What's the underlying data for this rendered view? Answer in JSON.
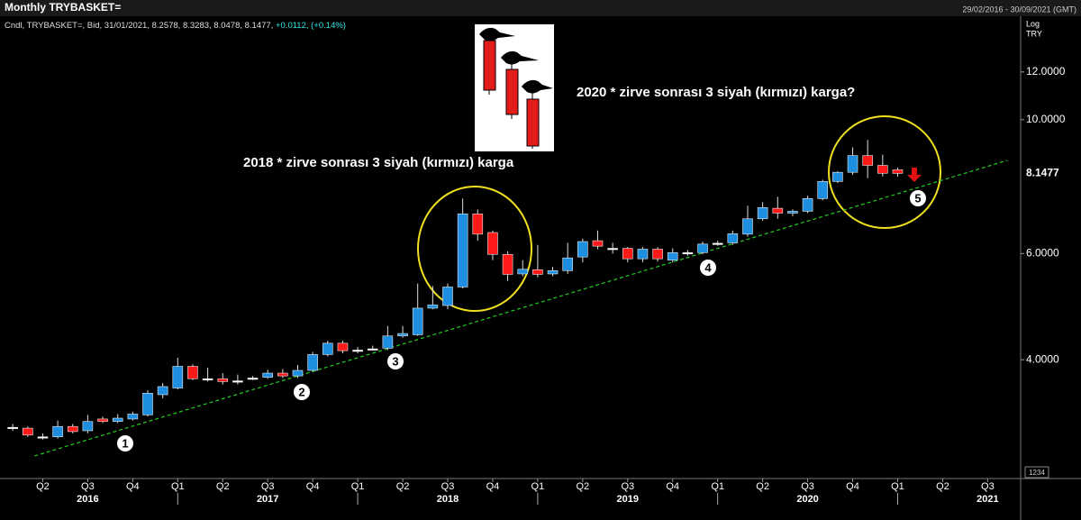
{
  "chart_data": {
    "type": "candlestick",
    "title": "Monthly TRYBASKET=",
    "date_range": "29/02/2016 - 30/09/2021 (GMT)",
    "info": "Cndl, TRYBASKET=, Bid, 31/01/2021, 8.2578, 8.3283, 8.0478, 8.1477, ",
    "change": "+0.0112, (+0.14%)",
    "scale_label": "Log",
    "currency": "TRY",
    "corner_label": "1234",
    "log_scale": true,
    "up_color": "#1e8fe0",
    "down_color": "#ff1a1a",
    "doji_color": "#ffffff",
    "trend_color": "#22cc22",
    "ylim": [
      2.55,
      15.05
    ],
    "yticks": [
      {
        "value": 12,
        "label": "12.0000"
      },
      {
        "value": 10,
        "label": "10.0000"
      },
      {
        "value": 6,
        "label": "6.0000"
      },
      {
        "value": 4,
        "label": "4.0000"
      }
    ],
    "last_value": {
      "value": 8.1477,
      "label": "8.1477"
    },
    "xlim": [
      -0.85,
      67.2
    ],
    "xticks": [
      {
        "value": 2,
        "label": "Q2"
      },
      {
        "value": 5,
        "label": "Q3"
      },
      {
        "value": 8,
        "label": "Q4"
      },
      {
        "value": 11,
        "label": "Q1"
      },
      {
        "value": 14,
        "label": "Q2"
      },
      {
        "value": 17,
        "label": "Q3"
      },
      {
        "value": 20,
        "label": "Q4"
      },
      {
        "value": 23,
        "label": "Q1"
      },
      {
        "value": 26,
        "label": "Q2"
      },
      {
        "value": 29,
        "label": "Q3"
      },
      {
        "value": 32,
        "label": "Q4"
      },
      {
        "value": 35,
        "label": "Q1"
      },
      {
        "value": 38,
        "label": "Q2"
      },
      {
        "value": 41,
        "label": "Q3"
      },
      {
        "value": 44,
        "label": "Q4"
      },
      {
        "value": 47,
        "label": "Q1"
      },
      {
        "value": 50,
        "label": "Q2"
      },
      {
        "value": 53,
        "label": "Q3"
      },
      {
        "value": 56,
        "label": "Q4"
      },
      {
        "value": 59,
        "label": "Q1"
      },
      {
        "value": 62,
        "label": "Q2"
      },
      {
        "value": 65,
        "label": "Q3"
      }
    ],
    "year_ticks": [
      {
        "value": 5,
        "label": "2016"
      },
      {
        "value": 17,
        "label": "2017"
      },
      {
        "value": 29,
        "label": "2018"
      },
      {
        "value": 41,
        "label": "2019"
      },
      {
        "value": 53,
        "label": "2020"
      },
      {
        "value": 65,
        "label": "2021"
      }
    ],
    "candles": [
      {
        "open": 3.09,
        "high": 3.13,
        "low": 3.05,
        "close": 3.09
      },
      {
        "open": 3.08,
        "high": 3.1,
        "low": 2.98,
        "close": 3.0
      },
      {
        "open": 2.98,
        "high": 3.02,
        "low": 2.95,
        "close": 2.98
      },
      {
        "open": 2.98,
        "high": 3.17,
        "low": 2.96,
        "close": 3.1
      },
      {
        "open": 3.1,
        "high": 3.13,
        "low": 3.02,
        "close": 3.04
      },
      {
        "open": 3.05,
        "high": 3.24,
        "low": 3.02,
        "close": 3.16
      },
      {
        "open": 3.19,
        "high": 3.22,
        "low": 3.14,
        "close": 3.16
      },
      {
        "open": 3.16,
        "high": 3.25,
        "low": 3.14,
        "close": 3.2
      },
      {
        "open": 3.19,
        "high": 3.28,
        "low": 3.17,
        "close": 3.25
      },
      {
        "open": 3.24,
        "high": 3.56,
        "low": 3.22,
        "close": 3.52
      },
      {
        "open": 3.5,
        "high": 3.66,
        "low": 3.45,
        "close": 3.61
      },
      {
        "open": 3.59,
        "high": 4.03,
        "low": 3.57,
        "close": 3.9
      },
      {
        "open": 3.9,
        "high": 3.93,
        "low": 3.7,
        "close": 3.72
      },
      {
        "open": 3.72,
        "high": 3.88,
        "low": 3.68,
        "close": 3.72
      },
      {
        "open": 3.72,
        "high": 3.8,
        "low": 3.64,
        "close": 3.68
      },
      {
        "open": 3.69,
        "high": 3.78,
        "low": 3.64,
        "close": 3.69
      },
      {
        "open": 3.73,
        "high": 3.76,
        "low": 3.7,
        "close": 3.73
      },
      {
        "open": 3.74,
        "high": 3.85,
        "low": 3.72,
        "close": 3.8
      },
      {
        "open": 3.8,
        "high": 3.86,
        "low": 3.73,
        "close": 3.76
      },
      {
        "open": 3.76,
        "high": 3.92,
        "low": 3.73,
        "close": 3.84
      },
      {
        "open": 3.84,
        "high": 4.12,
        "low": 3.82,
        "close": 4.08
      },
      {
        "open": 4.08,
        "high": 4.3,
        "low": 4.05,
        "close": 4.26
      },
      {
        "open": 4.26,
        "high": 4.3,
        "low": 4.1,
        "close": 4.14
      },
      {
        "open": 4.15,
        "high": 4.2,
        "low": 4.1,
        "close": 4.15
      },
      {
        "open": 4.17,
        "high": 4.22,
        "low": 4.14,
        "close": 4.17
      },
      {
        "open": 4.18,
        "high": 4.55,
        "low": 4.15,
        "close": 4.38
      },
      {
        "open": 4.38,
        "high": 4.55,
        "low": 4.35,
        "close": 4.42
      },
      {
        "open": 4.4,
        "high": 5.35,
        "low": 4.38,
        "close": 4.87
      },
      {
        "open": 4.87,
        "high": 5.3,
        "low": 4.85,
        "close": 4.93
      },
      {
        "open": 4.92,
        "high": 5.35,
        "low": 4.85,
        "close": 5.28
      },
      {
        "open": 5.28,
        "high": 7.4,
        "low": 5.25,
        "close": 6.98
      },
      {
        "open": 6.98,
        "high": 7.1,
        "low": 6.3,
        "close": 6.46
      },
      {
        "open": 6.5,
        "high": 6.55,
        "low": 5.85,
        "close": 5.98
      },
      {
        "open": 5.98,
        "high": 6.05,
        "low": 5.4,
        "close": 5.54
      },
      {
        "open": 5.55,
        "high": 5.85,
        "low": 5.5,
        "close": 5.65
      },
      {
        "open": 5.64,
        "high": 6.2,
        "low": 5.48,
        "close": 5.54
      },
      {
        "open": 5.55,
        "high": 5.7,
        "low": 5.5,
        "close": 5.62
      },
      {
        "open": 5.62,
        "high": 6.25,
        "low": 5.55,
        "close": 5.9
      },
      {
        "open": 5.92,
        "high": 6.35,
        "low": 5.8,
        "close": 6.28
      },
      {
        "open": 6.3,
        "high": 6.55,
        "low": 6.1,
        "close": 6.17
      },
      {
        "open": 6.12,
        "high": 6.25,
        "low": 6.0,
        "close": 6.12
      },
      {
        "open": 6.12,
        "high": 6.15,
        "low": 5.8,
        "close": 5.88
      },
      {
        "open": 5.88,
        "high": 6.15,
        "low": 5.8,
        "close": 6.1
      },
      {
        "open": 6.1,
        "high": 6.15,
        "low": 5.82,
        "close": 5.88
      },
      {
        "open": 5.85,
        "high": 6.12,
        "low": 5.8,
        "close": 6.02
      },
      {
        "open": 6.02,
        "high": 6.08,
        "low": 5.95,
        "close": 6.02
      },
      {
        "open": 6.02,
        "high": 6.28,
        "low": 5.98,
        "close": 6.22
      },
      {
        "open": 6.24,
        "high": 6.3,
        "low": 6.18,
        "close": 6.24
      },
      {
        "open": 6.25,
        "high": 6.55,
        "low": 6.2,
        "close": 6.47
      },
      {
        "open": 6.46,
        "high": 7.2,
        "low": 6.4,
        "close": 6.85
      },
      {
        "open": 6.85,
        "high": 7.3,
        "low": 6.8,
        "close": 7.15
      },
      {
        "open": 7.13,
        "high": 7.45,
        "low": 6.85,
        "close": 7.0
      },
      {
        "open": 7.0,
        "high": 7.1,
        "low": 6.92,
        "close": 7.05
      },
      {
        "open": 7.05,
        "high": 7.48,
        "low": 7.0,
        "close": 7.4
      },
      {
        "open": 7.4,
        "high": 7.95,
        "low": 7.35,
        "close": 7.9
      },
      {
        "open": 7.9,
        "high": 8.22,
        "low": 7.85,
        "close": 8.18
      },
      {
        "open": 8.18,
        "high": 9.0,
        "low": 8.1,
        "close": 8.72
      },
      {
        "open": 8.72,
        "high": 9.26,
        "low": 8.0,
        "close": 8.4
      },
      {
        "open": 8.4,
        "high": 8.75,
        "low": 8.05,
        "close": 8.15
      },
      {
        "open": 8.2578,
        "high": 8.3283,
        "low": 8.0478,
        "close": 8.1477
      }
    ],
    "trendline": {
      "x": [
        1.45,
        66.3
      ],
      "y": [
        2.77,
        8.56
      ]
    },
    "annotations": [
      "2020 * zirve sonrası 3 siyah (kırmızı) karga?",
      "2018 * zirve sonrası 3 siyah (kırmızı) karga"
    ],
    "markers": [
      "1",
      "2",
      "3",
      "4",
      "5"
    ]
  }
}
